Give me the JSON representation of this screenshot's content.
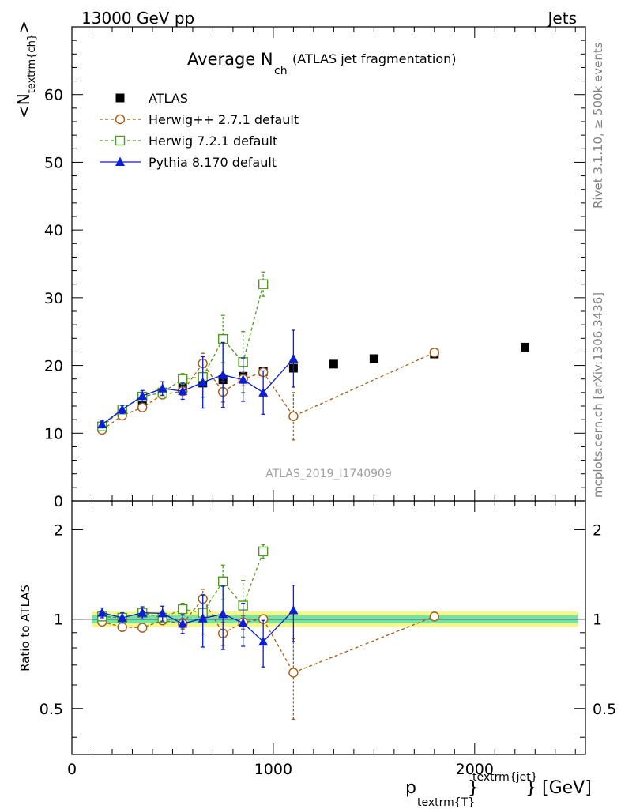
{
  "header": {
    "left": "13000 GeV pp",
    "right": "Jets",
    "side_top": "Rivet 3.1.10, ≥ 500k events",
    "side_bottom": "mcplots.cern.ch [arXiv:1306.3436]"
  },
  "chart_data": [
    {
      "type": "scatter",
      "panel": "main",
      "title_main": "Average N",
      "title_sub": "ch",
      "title_note": "(ATLAS jet fragmentation)",
      "ylabel_pre": "<N",
      "ylabel_sub": "textrm{ch}",
      "ylabel_post": ">",
      "watermark": "ATLAS_2019_I1740909",
      "xlim": [
        0,
        2550
      ],
      "ylim": [
        0,
        70
      ],
      "yticks": [
        "0",
        "10",
        "20",
        "30",
        "40",
        "50",
        "60"
      ],
      "legend_position": "top-left",
      "series": [
        {
          "name": "ATLAS",
          "style": "data",
          "color": "#000000",
          "x": [
            150,
            250,
            350,
            450,
            550,
            650,
            750,
            850,
            950,
            1100,
            1300,
            1500,
            1800,
            2250
          ],
          "y": [
            10.8,
            13.4,
            14.7,
            15.9,
            16.8,
            17.4,
            17.9,
            18.4,
            19.1,
            19.6,
            20.2,
            21.0,
            21.7,
            22.7
          ],
          "err": [
            0.4,
            0.4,
            0.4,
            0.4,
            0.4,
            0.4,
            0.4,
            0.4,
            0.4,
            0.4,
            0.4,
            0.4,
            0.4,
            0.4
          ]
        },
        {
          "name": "Herwig++ 2.7.1 default",
          "style": "circle-open-dashed",
          "color": "#a65c14",
          "x": [
            150,
            250,
            350,
            450,
            550,
            650,
            750,
            850,
            950,
            1100,
            1800
          ],
          "y": [
            10.5,
            12.6,
            13.8,
            15.7,
            16.2,
            20.3,
            16.1,
            18.0,
            19.0,
            12.5,
            21.9
          ],
          "err": [
            0.4,
            0.4,
            0.4,
            0.5,
            0.6,
            1.5,
            1.5,
            1.0,
            0.5,
            3.5,
            0.4
          ]
        },
        {
          "name": "Herwig 7.2.1 default",
          "style": "square-open-dashed",
          "color": "#4d9a1c",
          "x": [
            150,
            250,
            350,
            450,
            550,
            650,
            750,
            850,
            950
          ],
          "y": [
            11.0,
            13.5,
            15.4,
            16.0,
            18.0,
            18.3,
            23.9,
            20.5,
            32.0
          ],
          "err": [
            0.4,
            0.4,
            0.4,
            0.5,
            0.8,
            3.0,
            3.5,
            4.5,
            1.8
          ]
        },
        {
          "name": "Pythia 8.170 default",
          "style": "triangle-solid-line",
          "color": "#0a1ed4",
          "x": [
            150,
            250,
            350,
            450,
            550,
            650,
            750,
            850,
            950,
            1100
          ],
          "y": [
            11.3,
            13.5,
            15.5,
            16.6,
            16.2,
            17.5,
            18.6,
            17.9,
            16.0,
            21.0
          ],
          "err": [
            0.5,
            0.6,
            0.8,
            1.0,
            1.2,
            3.8,
            4.8,
            3.2,
            3.2,
            4.2
          ]
        }
      ]
    },
    {
      "type": "line",
      "panel": "ratio",
      "ylabel": "Ratio to ATLAS",
      "xlabel_pre": "p",
      "xlabel_sub": "textrm{T}",
      "xlabel_sup": "textrm{jet}",
      "xlabel_post": "} [GeV]",
      "xticks": [
        "0",
        "1000",
        "2000"
      ],
      "yticks": [
        "0.5",
        "1",
        "2"
      ],
      "xlim": [
        0,
        2550
      ],
      "ylim": [
        0.35,
        2.5
      ],
      "yscale": "log",
      "band": {
        "x": [
          100,
          2550
        ],
        "inner": 0.03,
        "outer": 0.06,
        "inner_color": "#6ee6a6",
        "outer_color": "#f6f78a"
      },
      "series": [
        {
          "name": "Herwig++ 2.7.1 default",
          "color": "#a65c14",
          "x": [
            150,
            250,
            350,
            450,
            550,
            650,
            750,
            850,
            950,
            1100,
            1800
          ],
          "y": [
            0.98,
            0.94,
            0.935,
            0.99,
            0.965,
            1.17,
            0.895,
            0.975,
            1.0,
            0.66,
            1.02
          ],
          "err": [
            0.03,
            0.03,
            0.03,
            0.03,
            0.04,
            0.09,
            0.08,
            0.05,
            0.03,
            0.2,
            0.02
          ]
        },
        {
          "name": "Herwig 7.2.1 default",
          "color": "#4d9a1c",
          "x": [
            150,
            250,
            350,
            450,
            550,
            650,
            750,
            850,
            950
          ],
          "y": [
            1.02,
            1.01,
            1.05,
            1.01,
            1.08,
            1.05,
            1.34,
            1.11,
            1.69
          ],
          "err": [
            0.03,
            0.03,
            0.03,
            0.03,
            0.05,
            0.16,
            0.18,
            0.24,
            0.09
          ]
        },
        {
          "name": "Pythia 8.170 default",
          "color": "#0a1ed4",
          "x": [
            150,
            250,
            350,
            450,
            550,
            650,
            750,
            850,
            950,
            1100
          ],
          "y": [
            1.05,
            1.01,
            1.05,
            1.045,
            0.965,
            1.005,
            1.04,
            0.97,
            0.84,
            1.07
          ],
          "err": [
            0.04,
            0.04,
            0.05,
            0.06,
            0.07,
            0.2,
            0.25,
            0.16,
            0.15,
            0.23
          ]
        }
      ]
    }
  ]
}
